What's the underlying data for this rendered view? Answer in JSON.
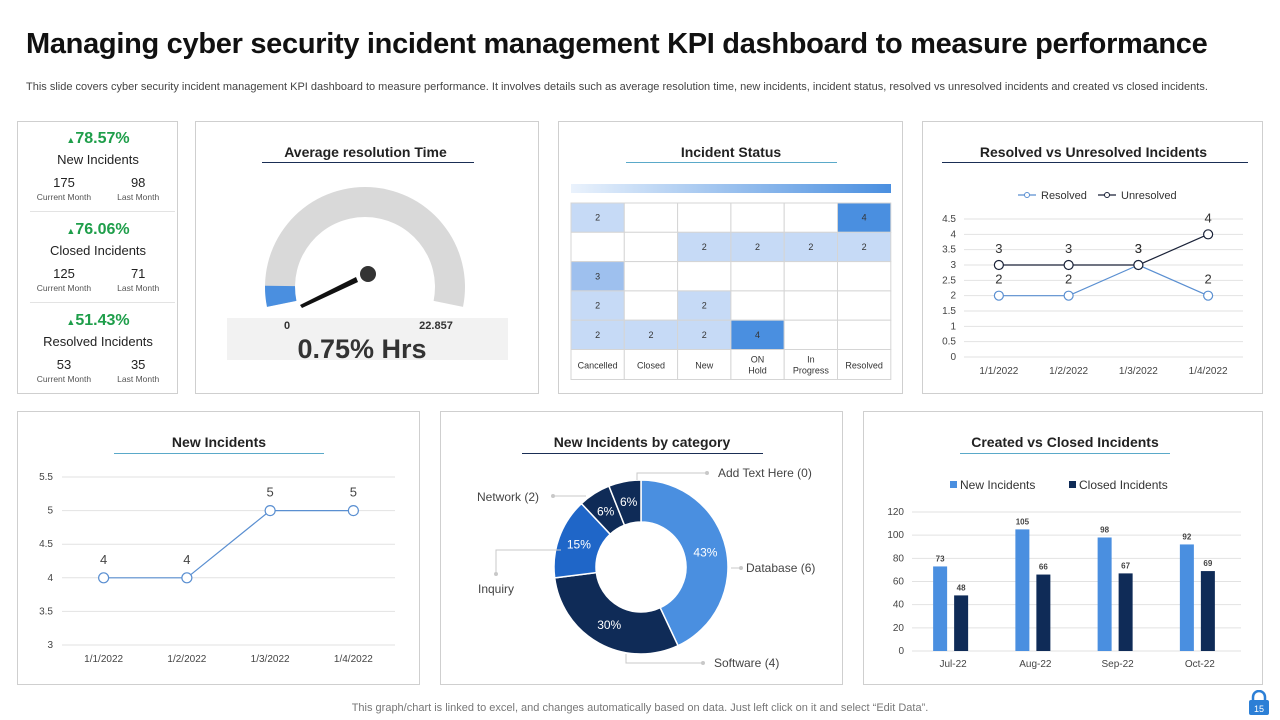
{
  "title": "Managing cyber security incident management KPI dashboard to measure performance",
  "subtitle": "This slide covers cyber security incident management KPI dashboard to measure performance. It involves details such as average resolution time, new incidents, incident status, resolved vs unresolved incidents and created vs closed incidents.",
  "footer": "This graph/chart is linked to excel,  and changes automatically based on data. Just left click on it and select “Edit Data”.",
  "page_number": "15",
  "colors": {
    "accent": "#4a8fe0",
    "dark": "#0f2b57",
    "green": "#1e9e4a",
    "light_blue": "#a9c8f0"
  },
  "kpis": [
    {
      "pct": "78.57%",
      "label": "New Incidents",
      "current": "175",
      "current_cap": "Current Month",
      "last": "98",
      "last_cap": "Last Month"
    },
    {
      "pct": "76.06%",
      "label": "Closed Incidents",
      "current": "125",
      "current_cap": "Current Month",
      "last": "71",
      "last_cap": "Last Month"
    },
    {
      "pct": "51.43%",
      "label": "Resolved Incidents",
      "current": "53",
      "current_cap": "Current Month",
      "last": "35",
      "last_cap": "Last Month"
    }
  ],
  "panels": {
    "avg": "Average resolution Time",
    "status": "Incident Status",
    "resolved": "Resolved vs Unresolved Incidents",
    "new": "New  Incidents",
    "category": "New  Incidents by category",
    "created": "Created  vs Closed Incidents"
  },
  "chart_data": [
    {
      "type": "gauge",
      "title": "Average resolution Time",
      "min": 0,
      "max": 22.857,
      "min_label": "0",
      "max_label": "22.857",
      "value_fraction": 0.0075,
      "value_label": "0.75% Hrs"
    },
    {
      "type": "table",
      "title": "Incident Status",
      "columns": [
        "Cancelled",
        "Closed",
        "New",
        "ON Hold",
        "In Progress",
        "Resolved"
      ],
      "rows": [
        [
          "2",
          "",
          "",
          "",
          "",
          "4"
        ],
        [
          "",
          "",
          "2",
          "2",
          "2",
          "2"
        ],
        [
          "3",
          "",
          "",
          "",
          "",
          ""
        ],
        [
          "2",
          "",
          "2",
          "",
          "",
          ""
        ],
        [
          "2",
          "2",
          "2",
          "4",
          "",
          ""
        ]
      ]
    },
    {
      "type": "line",
      "title": "Resolved vs Unresolved Incidents",
      "categories": [
        "1/1/2022",
        "1/2/2022",
        "1/3/2022",
        "1/4/2022"
      ],
      "series": [
        {
          "name": "Resolved",
          "values": [
            2,
            2,
            3,
            2
          ]
        },
        {
          "name": "Unresolved",
          "values": [
            3,
            3,
            3,
            4
          ]
        }
      ],
      "ylim": [
        0,
        4.5
      ],
      "yticks": [
        "0",
        "0.5",
        "1",
        "1.5",
        "2",
        "2.5",
        "3",
        "3.5",
        "4",
        "4.5"
      ],
      "legend": "top"
    },
    {
      "type": "line",
      "title": "New  Incidents",
      "categories": [
        "1/1/2022",
        "1/2/2022",
        "1/3/2022",
        "1/4/2022"
      ],
      "values": [
        4,
        4,
        5,
        5
      ],
      "ylim": [
        3,
        5.5
      ],
      "yticks": [
        "3",
        "3.5",
        "4",
        "4.5",
        "5",
        "5.5"
      ]
    },
    {
      "type": "pie",
      "title": "New  Incidents by category",
      "slices": [
        {
          "label": "Database (6)",
          "pct": "43%",
          "value": 43
        },
        {
          "label": "Software (4)",
          "pct": "30%",
          "value": 30
        },
        {
          "label": "Inquiry",
          "pct": "15%",
          "value": 15
        },
        {
          "label": "Network (2)",
          "pct": "6%",
          "value": 6
        },
        {
          "label": "Add Text Here (0)",
          "pct": "6%",
          "value": 6
        }
      ]
    },
    {
      "type": "bar",
      "title": "Created  vs Closed Incidents",
      "categories": [
        "Jul-22",
        "Aug-22",
        "Sep-22",
        "Oct-22"
      ],
      "series": [
        {
          "name": "New Incidents",
          "values": [
            73,
            105,
            98,
            92
          ]
        },
        {
          "name": "Closed Incidents",
          "values": [
            48,
            66,
            67,
            69
          ]
        }
      ],
      "ylim": [
        0,
        120
      ],
      "yticks": [
        "0",
        "20",
        "40",
        "60",
        "80",
        "100",
        "120"
      ],
      "legend": "top"
    }
  ]
}
